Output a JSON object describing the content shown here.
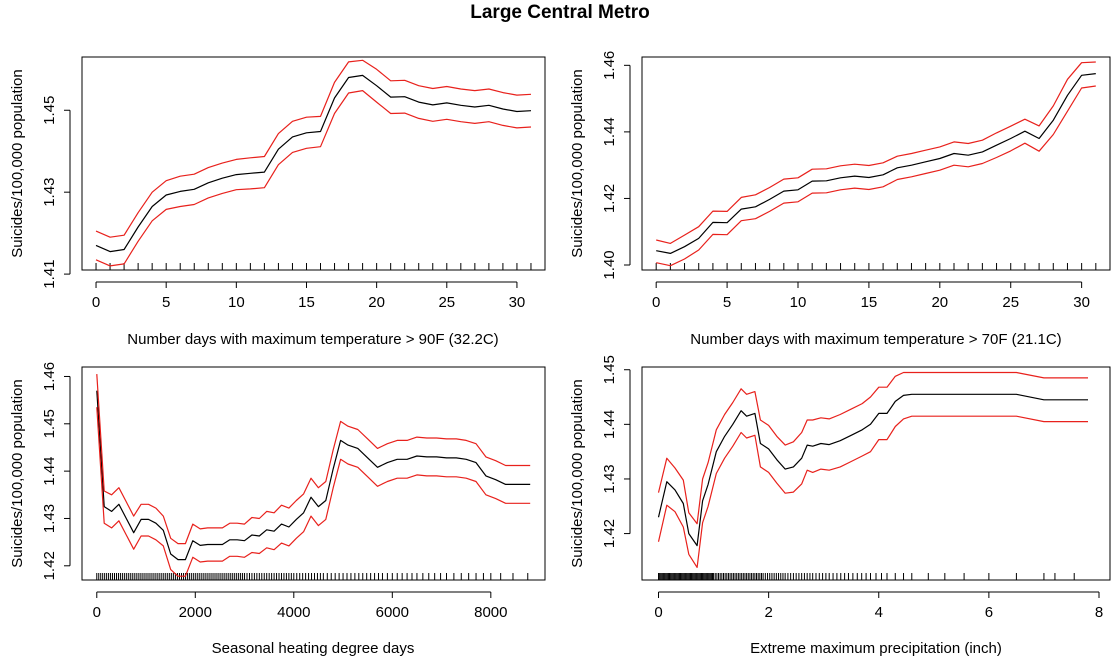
{
  "title": "Large Central Metro",
  "colors": {
    "mean": "#000000",
    "ci": "#e8211c",
    "axis": "#000000"
  },
  "chart_data": [
    {
      "type": "line",
      "xlabel": "Number days with maximum temperature > 90F (32.2C)",
      "ylabel": "Suicides/100,000 population",
      "xlim": [
        -1,
        32
      ],
      "ylim": [
        1.411,
        1.463
      ],
      "xticks": [
        0,
        5,
        10,
        15,
        20,
        25,
        30
      ],
      "yticks": [
        1.41,
        1.43,
        1.45
      ],
      "ytick_labels": [
        "1.41",
        "1.43",
        "1.45"
      ],
      "x": [
        0,
        1,
        2,
        3,
        4,
        5,
        6,
        7,
        8,
        9,
        10,
        11,
        12,
        13,
        14,
        15,
        16,
        17,
        18,
        19,
        20,
        21,
        22,
        23,
        24,
        25,
        26,
        27,
        28,
        29,
        30,
        31
      ],
      "series": [
        {
          "name": "mean",
          "values": [
            1.417,
            1.4155,
            1.416,
            1.4215,
            1.4265,
            1.4293,
            1.4302,
            1.4307,
            1.4323,
            1.4334,
            1.4343,
            1.4346,
            1.4349,
            1.4405,
            1.4435,
            1.4445,
            1.4448,
            1.453,
            1.458,
            1.4585,
            1.456,
            1.4532,
            1.4533,
            1.452,
            1.4513,
            1.4518,
            1.4512,
            1.4508,
            1.4512,
            1.4503,
            1.4497,
            1.4499
          ]
        },
        {
          "name": "upper",
          "values": [
            1.4205,
            1.419,
            1.4195,
            1.425,
            1.43,
            1.4328,
            1.4339,
            1.4344,
            1.436,
            1.4371,
            1.438,
            1.4384,
            1.4387,
            1.4443,
            1.4473,
            1.4483,
            1.4485,
            1.4568,
            1.4618,
            1.4622,
            1.46,
            1.4572,
            1.4573,
            1.456,
            1.4553,
            1.4558,
            1.4552,
            1.4548,
            1.4552,
            1.4543,
            1.4537,
            1.4539
          ]
        },
        {
          "name": "lower",
          "values": [
            1.4135,
            1.412,
            1.4125,
            1.418,
            1.423,
            1.4258,
            1.4265,
            1.427,
            1.4286,
            1.4297,
            1.4306,
            1.4308,
            1.4311,
            1.4367,
            1.4397,
            1.4407,
            1.4411,
            1.4492,
            1.4542,
            1.4548,
            1.452,
            1.4492,
            1.4493,
            1.448,
            1.4473,
            1.4478,
            1.4472,
            1.4468,
            1.4472,
            1.4463,
            1.4457,
            1.4459
          ]
        }
      ],
      "rug": [
        0,
        1,
        2,
        3,
        4,
        5,
        6,
        7,
        8,
        9,
        10,
        11,
        12,
        13,
        14,
        15,
        16,
        17,
        18,
        19,
        20,
        21,
        22,
        23,
        24,
        25,
        26,
        27,
        28,
        29,
        30,
        31
      ]
    },
    {
      "type": "line",
      "xlabel": "Number days with maximum temperature > 70F (21.1C)",
      "ylabel": "Suicides/100,000 population",
      "xlim": [
        -1,
        32
      ],
      "ylim": [
        1.3985,
        1.4625
      ],
      "xticks": [
        0,
        5,
        10,
        15,
        20,
        25,
        30
      ],
      "yticks": [
        1.4,
        1.42,
        1.44,
        1.46
      ],
      "ytick_labels": [
        "1.40",
        "1.42",
        "1.44",
        "1.46"
      ],
      "x": [
        0,
        1,
        2,
        3,
        4,
        5,
        6,
        7,
        8,
        9,
        10,
        11,
        12,
        13,
        14,
        15,
        16,
        17,
        18,
        19,
        20,
        21,
        22,
        23,
        24,
        25,
        26,
        27,
        28,
        29,
        30,
        31
      ],
      "series": [
        {
          "name": "mean",
          "values": [
            1.4043,
            1.4035,
            1.4055,
            1.408,
            1.4128,
            1.4127,
            1.4168,
            1.4175,
            1.4197,
            1.4222,
            1.4226,
            1.4252,
            1.4253,
            1.4262,
            1.4267,
            1.4263,
            1.4271,
            1.4292,
            1.43,
            1.431,
            1.432,
            1.4335,
            1.433,
            1.434,
            1.436,
            1.438,
            1.4402,
            1.438,
            1.4435,
            1.451,
            1.457,
            1.4575
          ]
        },
        {
          "name": "upper",
          "values": [
            1.4075,
            1.4065,
            1.409,
            1.4115,
            1.4162,
            1.4161,
            1.4203,
            1.4211,
            1.4233,
            1.4258,
            1.4262,
            1.4288,
            1.4289,
            1.4298,
            1.4303,
            1.4299,
            1.4307,
            1.4327,
            1.4335,
            1.4345,
            1.4355,
            1.437,
            1.4365,
            1.4375,
            1.4397,
            1.4417,
            1.4438,
            1.4418,
            1.4478,
            1.4558,
            1.4608,
            1.461
          ]
        },
        {
          "name": "lower",
          "values": [
            1.4007,
            1.3998,
            1.4018,
            1.4045,
            1.4092,
            1.4091,
            1.4133,
            1.4139,
            1.4161,
            1.4186,
            1.419,
            1.4216,
            1.4217,
            1.4226,
            1.4231,
            1.4227,
            1.4235,
            1.4257,
            1.4265,
            1.4275,
            1.4285,
            1.43,
            1.4295,
            1.4305,
            1.4323,
            1.4343,
            1.4366,
            1.4342,
            1.4392,
            1.4462,
            1.4532,
            1.4538
          ]
        }
      ],
      "rug": [
        0,
        1,
        2,
        3,
        4,
        5,
        6,
        7,
        8,
        9,
        10,
        11,
        12,
        13,
        14,
        15,
        16,
        17,
        18,
        19,
        20,
        21,
        22,
        23,
        24,
        25,
        26,
        27,
        28,
        29,
        30,
        31
      ]
    },
    {
      "type": "line",
      "xlabel": "Seasonal heating degree days",
      "ylabel": "Suicides/100,000 population",
      "xlim": [
        -300,
        9100
      ],
      "ylim": [
        1.417,
        1.462
      ],
      "xticks": [
        0,
        2000,
        4000,
        6000,
        8000
      ],
      "yticks": [
        1.42,
        1.43,
        1.44,
        1.45,
        1.46
      ],
      "ytick_labels": [
        "1.42",
        "1.43",
        "1.44",
        "1.45",
        "1.46"
      ],
      "x": [
        0,
        150,
        300,
        450,
        600,
        750,
        900,
        1050,
        1200,
        1350,
        1500,
        1650,
        1800,
        1950,
        2100,
        2250,
        2400,
        2550,
        2700,
        2850,
        3000,
        3150,
        3300,
        3450,
        3600,
        3750,
        3900,
        4050,
        4200,
        4350,
        4500,
        4650,
        4800,
        4950,
        5100,
        5300,
        5500,
        5700,
        5900,
        6100,
        6300,
        6500,
        6700,
        6900,
        7100,
        7300,
        7500,
        7700,
        7900,
        8100,
        8300,
        8500,
        8800
      ],
      "series": [
        {
          "name": "mean",
          "values": [
            1.457,
            1.4325,
            1.4315,
            1.433,
            1.43,
            1.427,
            1.4298,
            1.4298,
            1.429,
            1.4275,
            1.4225,
            1.4213,
            1.4213,
            1.4253,
            1.4243,
            1.4245,
            1.4245,
            1.4245,
            1.4255,
            1.4255,
            1.4253,
            1.4265,
            1.4263,
            1.4276,
            1.4273,
            1.4288,
            1.4282,
            1.4298,
            1.4312,
            1.4345,
            1.4325,
            1.4338,
            1.4405,
            1.4465,
            1.4455,
            1.4448,
            1.4428,
            1.4408,
            1.4418,
            1.4425,
            1.4425,
            1.4432,
            1.443,
            1.443,
            1.4428,
            1.4428,
            1.4425,
            1.4418,
            1.439,
            1.4382,
            1.4372,
            1.4372,
            1.4372
          ]
        },
        {
          "name": "upper",
          "values": [
            1.4605,
            1.4358,
            1.435,
            1.4365,
            1.4335,
            1.4305,
            1.433,
            1.433,
            1.4322,
            1.4305,
            1.4258,
            1.4247,
            1.4247,
            1.4288,
            1.4278,
            1.428,
            1.428,
            1.428,
            1.429,
            1.429,
            1.4288,
            1.4302,
            1.43,
            1.4315,
            1.4312,
            1.4328,
            1.4322,
            1.4338,
            1.4352,
            1.4385,
            1.4365,
            1.4378,
            1.4445,
            1.4505,
            1.4495,
            1.4488,
            1.4468,
            1.4448,
            1.4458,
            1.4465,
            1.4465,
            1.4472,
            1.447,
            1.447,
            1.4468,
            1.4468,
            1.4465,
            1.4458,
            1.443,
            1.4422,
            1.4412,
            1.4412,
            1.4412
          ]
        },
        {
          "name": "lower",
          "values": [
            1.4535,
            1.429,
            1.428,
            1.4295,
            1.4265,
            1.4235,
            1.4263,
            1.4263,
            1.4255,
            1.4242,
            1.4192,
            1.4178,
            1.4178,
            1.4218,
            1.4208,
            1.421,
            1.421,
            1.421,
            1.422,
            1.422,
            1.4218,
            1.4228,
            1.4226,
            1.4238,
            1.4234,
            1.4248,
            1.4242,
            1.4258,
            1.4272,
            1.4305,
            1.4285,
            1.4298,
            1.4365,
            1.4425,
            1.4415,
            1.4408,
            1.4388,
            1.4368,
            1.4378,
            1.4385,
            1.4385,
            1.4392,
            1.439,
            1.439,
            1.4388,
            1.4388,
            1.4385,
            1.4378,
            1.435,
            1.4342,
            1.4332,
            1.4332,
            1.4332
          ]
        }
      ],
      "rug": [
        0,
        40,
        80,
        120,
        160,
        200,
        240,
        280,
        320,
        360,
        400,
        440,
        480,
        520,
        560,
        600,
        640,
        680,
        720,
        760,
        800,
        840,
        880,
        920,
        960,
        1000,
        1040,
        1080,
        1120,
        1160,
        1200,
        1240,
        1280,
        1320,
        1360,
        1400,
        1440,
        1480,
        1520,
        1560,
        1600,
        1640,
        1680,
        1720,
        1760,
        1800,
        1840,
        1880,
        1920,
        1960,
        2000,
        2040,
        2080,
        2120,
        2160,
        2200,
        2240,
        2280,
        2320,
        2360,
        2400,
        2440,
        2480,
        2520,
        2560,
        2600,
        2640,
        2680,
        2720,
        2760,
        2800,
        2840,
        2880,
        2920,
        2960,
        3000,
        3050,
        3100,
        3150,
        3200,
        3250,
        3300,
        3350,
        3400,
        3450,
        3500,
        3550,
        3600,
        3650,
        3700,
        3750,
        3800,
        3850,
        3900,
        3950,
        4000,
        4060,
        4120,
        4180,
        4240,
        4300,
        4360,
        4420,
        4480,
        4540,
        4600,
        4680,
        4760,
        4840,
        4920,
        5000,
        5080,
        5160,
        5240,
        5320,
        5400,
        5480,
        5560,
        5640,
        5720,
        5800,
        5900,
        6000,
        6100,
        6200,
        6300,
        6400,
        6500,
        6620,
        6740,
        6860,
        6980,
        7100,
        7250,
        7400,
        7550,
        7700,
        7850,
        8000,
        8200,
        8450,
        8750
      ]
    },
    {
      "type": "line",
      "xlabel": "Extreme maximum precipitation (inch)",
      "ylabel": "Suicides/100,000 population",
      "xlim": [
        -0.3,
        8.2
      ],
      "ylim": [
        1.4115,
        1.4505
      ],
      "xticks": [
        0,
        2,
        4,
        6,
        8
      ],
      "yticks": [
        1.42,
        1.43,
        1.44,
        1.45
      ],
      "ytick_labels": [
        "1.42",
        "1.43",
        "1.44",
        "1.45"
      ],
      "x": [
        0,
        0.15,
        0.3,
        0.45,
        0.55,
        0.7,
        0.8,
        0.9,
        1.05,
        1.2,
        1.35,
        1.5,
        1.6,
        1.75,
        1.85,
        2.0,
        2.15,
        2.3,
        2.45,
        2.6,
        2.7,
        2.8,
        2.95,
        3.1,
        3.3,
        3.5,
        3.7,
        3.85,
        4.0,
        4.15,
        4.3,
        4.45,
        4.6,
        5.0,
        5.5,
        6.0,
        6.5,
        7.0,
        7.1,
        7.8
      ],
      "series": [
        {
          "name": "mean",
          "values": [
            1.423,
            1.4295,
            1.428,
            1.4255,
            1.42,
            1.4178,
            1.426,
            1.429,
            1.435,
            1.4378,
            1.44,
            1.4425,
            1.4415,
            1.442,
            1.4365,
            1.4355,
            1.4335,
            1.4318,
            1.4322,
            1.4338,
            1.4362,
            1.436,
            1.4365,
            1.4363,
            1.437,
            1.438,
            1.439,
            1.44,
            1.442,
            1.442,
            1.4442,
            1.4453,
            1.4455,
            1.4455,
            1.4455,
            1.4455,
            1.4455,
            1.4445,
            1.4445,
            1.4445
          ]
        },
        {
          "name": "upper",
          "values": [
            1.4275,
            1.4338,
            1.432,
            1.4298,
            1.4238,
            1.4218,
            1.43,
            1.433,
            1.439,
            1.4418,
            1.444,
            1.4465,
            1.4455,
            1.446,
            1.4408,
            1.4398,
            1.4378,
            1.4362,
            1.4368,
            1.4385,
            1.4408,
            1.4408,
            1.4412,
            1.441,
            1.4418,
            1.4428,
            1.4438,
            1.445,
            1.4468,
            1.4468,
            1.4488,
            1.4495,
            1.4495,
            1.4495,
            1.4495,
            1.4495,
            1.4495,
            1.4485,
            1.4485,
            1.4485
          ]
        },
        {
          "name": "lower",
          "values": [
            1.4185,
            1.4252,
            1.424,
            1.4212,
            1.4162,
            1.4138,
            1.422,
            1.425,
            1.431,
            1.4338,
            1.436,
            1.4385,
            1.4375,
            1.438,
            1.4322,
            1.4312,
            1.4292,
            1.4274,
            1.4276,
            1.4291,
            1.4316,
            1.4312,
            1.4318,
            1.4316,
            1.4322,
            1.4332,
            1.4342,
            1.435,
            1.4372,
            1.4372,
            1.4396,
            1.441,
            1.4415,
            1.4415,
            1.4415,
            1.4415,
            1.4415,
            1.4405,
            1.4405,
            1.4405
          ]
        }
      ],
      "rug": [
        0,
        0.02,
        0.04,
        0.06,
        0.08,
        0.1,
        0.12,
        0.14,
        0.16,
        0.18,
        0.2,
        0.22,
        0.24,
        0.26,
        0.28,
        0.3,
        0.32,
        0.34,
        0.36,
        0.38,
        0.4,
        0.42,
        0.44,
        0.46,
        0.48,
        0.5,
        0.52,
        0.54,
        0.56,
        0.58,
        0.6,
        0.62,
        0.64,
        0.66,
        0.68,
        0.7,
        0.72,
        0.74,
        0.76,
        0.78,
        0.8,
        0.82,
        0.84,
        0.86,
        0.88,
        0.9,
        0.92,
        0.94,
        0.96,
        0.98,
        1.0,
        1.03,
        1.06,
        1.09,
        1.12,
        1.15,
        1.18,
        1.21,
        1.24,
        1.27,
        1.3,
        1.33,
        1.36,
        1.39,
        1.42,
        1.45,
        1.48,
        1.51,
        1.54,
        1.57,
        1.6,
        1.63,
        1.66,
        1.69,
        1.72,
        1.75,
        1.78,
        1.81,
        1.84,
        1.87,
        1.9,
        1.94,
        1.98,
        2.02,
        2.06,
        2.1,
        2.14,
        2.18,
        2.22,
        2.26,
        2.3,
        2.35,
        2.4,
        2.45,
        2.5,
        2.55,
        2.6,
        2.65,
        2.7,
        2.75,
        2.8,
        2.86,
        2.92,
        2.98,
        3.04,
        3.1,
        3.17,
        3.24,
        3.31,
        3.38,
        3.45,
        3.53,
        3.61,
        3.69,
        3.77,
        3.85,
        3.95,
        4.05,
        4.15,
        4.3,
        4.45,
        4.6,
        4.9,
        5.2,
        5.55,
        6.0,
        6.5,
        7.0,
        7.2,
        7.55
      ]
    }
  ]
}
